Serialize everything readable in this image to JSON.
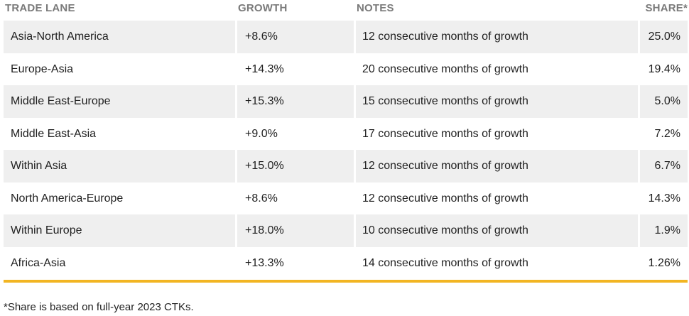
{
  "table": {
    "headers": {
      "trade_lane": "TRADE LANE",
      "growth": "GROWTH",
      "notes": "NOTES",
      "share": "SHARE*"
    },
    "rows": [
      {
        "trade_lane": "Asia-North America",
        "growth": "+8.6%",
        "notes": "12 consecutive months of growth",
        "share": "25.0%"
      },
      {
        "trade_lane": "Europe-Asia",
        "growth": "+14.3%",
        "notes": "20 consecutive months of growth",
        "share": "19.4%"
      },
      {
        "trade_lane": "Middle East-Europe",
        "growth": "+15.3%",
        "notes": "15 consecutive months of growth",
        "share": "5.0%"
      },
      {
        "trade_lane": "Middle East-Asia",
        "growth": "+9.0%",
        "notes": "17 consecutive months of growth",
        "share": "7.2%"
      },
      {
        "trade_lane": "Within Asia",
        "growth": "+15.0%",
        "notes": "12 consecutive months of growth",
        "share": "6.7%"
      },
      {
        "trade_lane": "North America-Europe",
        "growth": "+8.6%",
        "notes": "12 consecutive months of growth",
        "share": "14.3%"
      },
      {
        "trade_lane": "Within Europe",
        "growth": "+18.0%",
        "notes": "10 consecutive months of growth",
        "share": "1.9%"
      },
      {
        "trade_lane": "Africa-Asia",
        "growth": "+13.3%",
        "notes": "14 consecutive months of growth",
        "share": "1.26%"
      }
    ]
  },
  "footnote": "*Share is based on full-year 2023 CTKs.",
  "colors": {
    "accent": "#f2b522",
    "row_shade": "#efefef",
    "header_text": "#7a7a7a"
  }
}
